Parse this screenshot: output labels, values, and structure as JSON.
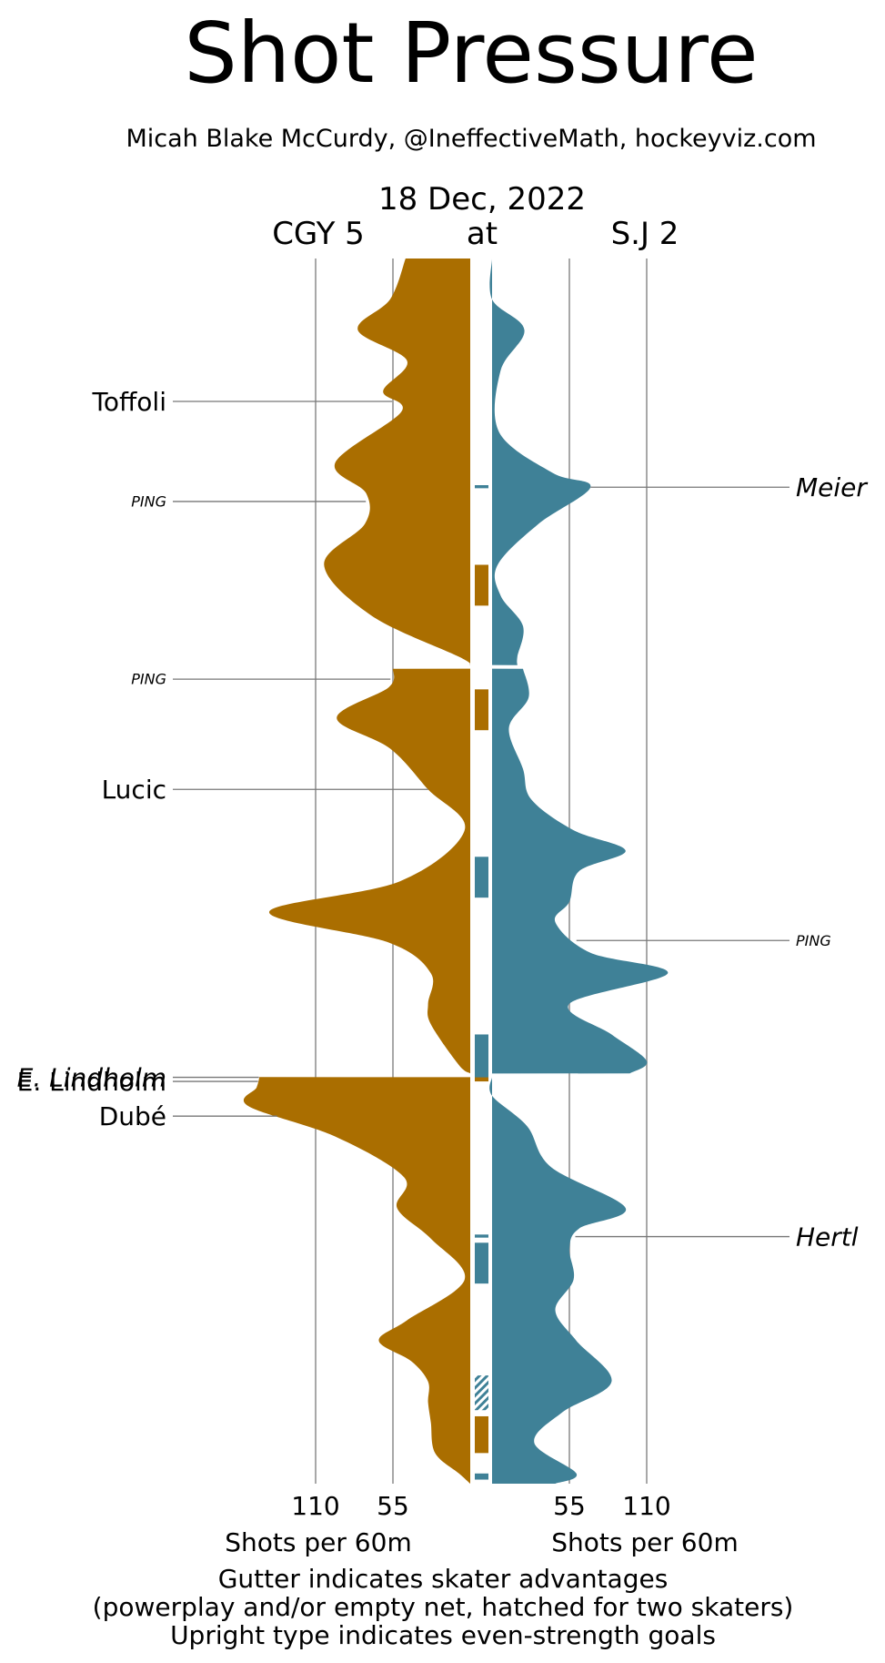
{
  "chart_data": {
    "type": "area",
    "title": "Shot Pressure",
    "subtitle": "Micah Blake McCurdy, @IneffectiveMath, hockeyviz.com",
    "date": "18 Dec, 2022",
    "matchup": {
      "away": "CGY 5",
      "at": "at",
      "home": "S.J 2"
    },
    "colors": {
      "away": "#aa6e00",
      "home": "#3f8197",
      "grid": "#a8a8a8",
      "leader": "#777777"
    },
    "axis": {
      "ticks": [
        110,
        55
      ],
      "tick_labels": [
        "110",
        "55"
      ],
      "xlabel_left": "Shots per 60m",
      "xlabel_right": "Shots per 60m",
      "range": [
        0,
        150
      ]
    },
    "periods": 3,
    "minutes_per_period": 20,
    "series": [
      {
        "name": "CGY",
        "values": [
          [
            [
              0,
              46
            ],
            [
              2,
              57
            ],
            [
              3.5,
              80
            ],
            [
              5,
              45
            ],
            [
              6.5,
              62
            ],
            [
              7.5,
              49
            ],
            [
              10,
              96
            ],
            [
              11.5,
              74
            ],
            [
              13,
              75
            ],
            [
              15,
              104
            ],
            [
              17.5,
              70
            ],
            [
              19.5,
              8
            ],
            [
              20,
              0
            ]
          ],
          [
            [
              0,
              55
            ],
            [
              1,
              58
            ],
            [
              2.5,
              95
            ],
            [
              4,
              57
            ],
            [
              6,
              30
            ],
            [
              8,
              4
            ],
            [
              10.5,
              50
            ],
            [
              12,
              143
            ],
            [
              13.5,
              58
            ],
            [
              15,
              28
            ],
            [
              16.5,
              30
            ],
            [
              17.5,
              28
            ],
            [
              19.5,
              8
            ],
            [
              20,
              0
            ]
          ],
          [
            [
              0,
              150
            ],
            [
              0.6,
              152
            ],
            [
              1.5,
              158
            ],
            [
              3,
              96
            ],
            [
              5,
              47
            ],
            [
              6.5,
              52
            ],
            [
              8,
              28
            ],
            [
              10,
              4
            ],
            [
              12,
              45
            ],
            [
              13,
              65
            ],
            [
              14,
              42
            ],
            [
              15,
              30
            ],
            [
              16,
              30
            ],
            [
              17,
              28
            ],
            [
              18.5,
              25
            ],
            [
              19.5,
              8
            ],
            [
              20,
              0
            ]
          ]
        ]
      },
      {
        "name": "S.J",
        "values": [
          [
            [
              0,
              0
            ],
            [
              2,
              0
            ],
            [
              3.5,
              23
            ],
            [
              5.5,
              6
            ],
            [
              8.5,
              5
            ],
            [
              10.5,
              43
            ],
            [
              11.2,
              70
            ],
            [
              13,
              33
            ],
            [
              15,
              4
            ],
            [
              16.5,
              6
            ],
            [
              18,
              22
            ],
            [
              19.5,
              18
            ],
            [
              20,
              18
            ]
          ],
          [
            [
              0,
              22
            ],
            [
              1.5,
              26
            ],
            [
              3,
              12
            ],
            [
              5,
              22
            ],
            [
              6.5,
              28
            ],
            [
              8,
              58
            ],
            [
              9,
              95
            ],
            [
              10,
              62
            ],
            [
              11.5,
              55
            ],
            [
              12.5,
              45
            ],
            [
              14,
              70
            ],
            [
              15,
              125
            ],
            [
              16.5,
              55
            ],
            [
              18,
              85
            ],
            [
              19.3,
              110
            ],
            [
              20,
              98
            ]
          ],
          [
            [
              0,
              0
            ],
            [
              1,
              0
            ],
            [
              2.5,
              25
            ],
            [
              4.5,
              42
            ],
            [
              6.5,
              95
            ],
            [
              7.5,
              62
            ],
            [
              8.5,
              55
            ],
            [
              10,
              58
            ],
            [
              11.5,
              45
            ],
            [
              13,
              60
            ],
            [
              15,
              85
            ],
            [
              16.5,
              50
            ],
            [
              18,
              30
            ],
            [
              19.5,
              60
            ],
            [
              20,
              45
            ]
          ]
        ]
      }
    ],
    "goals": [
      {
        "team": "CGY",
        "label": "Toffoli",
        "time": 7.0,
        "style": "upright",
        "size": "large"
      },
      {
        "team": "CGY",
        "label": "PING",
        "time": 11.9,
        "style": "italic",
        "size": "small"
      },
      {
        "team": "CGY",
        "label": "PING",
        "time": 20.6,
        "style": "italic",
        "size": "small"
      },
      {
        "team": "CGY",
        "label": "Lucic",
        "time": 26.0,
        "style": "upright",
        "size": "large"
      },
      {
        "team": "CGY",
        "label": "E. Lindholm",
        "time": 40.1,
        "style": "italic",
        "size": "large"
      },
      {
        "team": "CGY",
        "label": "E. Lindholm",
        "time": 40.3,
        "style": "upright",
        "size": "large"
      },
      {
        "team": "CGY",
        "label": "Dubé",
        "time": 42.0,
        "style": "upright",
        "size": "large"
      },
      {
        "team": "S.J",
        "label": "Meier",
        "time": 11.2,
        "style": "italic",
        "size": "large"
      },
      {
        "team": "S.J",
        "label": "PING",
        "time": 33.4,
        "style": "italic",
        "size": "small"
      },
      {
        "team": "S.J",
        "label": "Hertl",
        "time": 47.9,
        "style": "italic",
        "size": "large"
      }
    ],
    "gutter": [
      {
        "team": "S.J",
        "start": 11.1,
        "end": 11.25,
        "hatched": false
      },
      {
        "team": "CGY",
        "start": 15.0,
        "end": 17.0,
        "hatched": false
      },
      {
        "team": "CGY",
        "start": 21.1,
        "end": 23.1,
        "hatched": false
      },
      {
        "team": "S.J",
        "start": 29.3,
        "end": 31.3,
        "hatched": false
      },
      {
        "team": "S.J",
        "start": 38.0,
        "end": 40.2,
        "hatched": false
      },
      {
        "team": "CGY",
        "start": 40.1,
        "end": 40.3,
        "hatched": false
      },
      {
        "team": "S.J",
        "start": 47.8,
        "end": 47.95,
        "hatched": false
      },
      {
        "team": "S.J",
        "start": 48.2,
        "end": 50.2,
        "hatched": false
      },
      {
        "team": "S.J",
        "start": 54.7,
        "end": 56.4,
        "hatched": true
      },
      {
        "team": "CGY",
        "start": 56.7,
        "end": 58.5,
        "hatched": false
      },
      {
        "team": "S.J",
        "start": 59.5,
        "end": 59.8,
        "hatched": false
      }
    ],
    "footnotes": [
      "Gutter indicates skater advantages",
      "(powerplay and/or empty net, hatched for two skaters)",
      "Upright type indicates even-strength goals"
    ]
  }
}
